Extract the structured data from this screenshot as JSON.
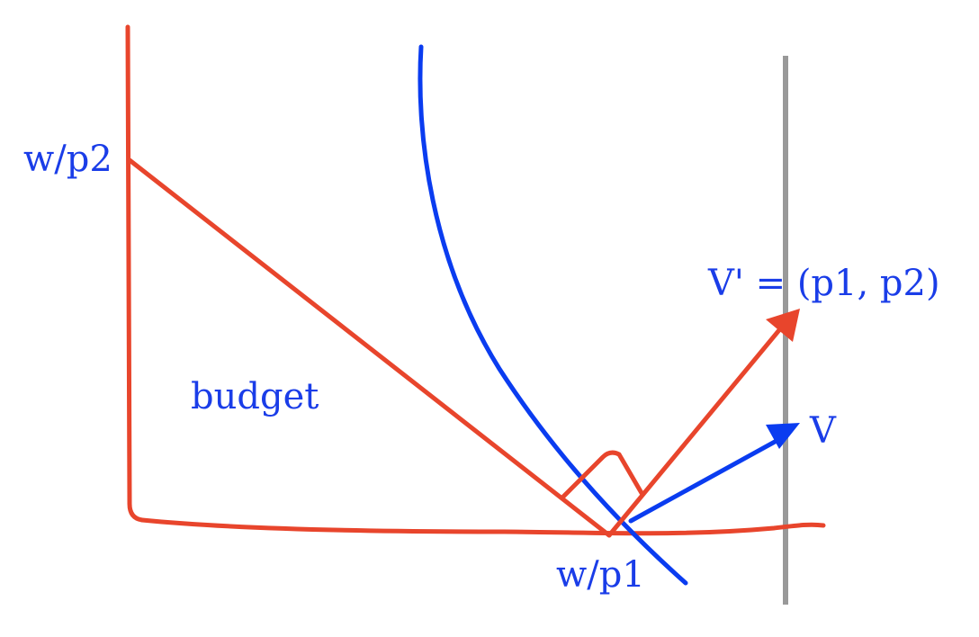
{
  "colors": {
    "budget_line": "#e8452c",
    "indifference_curve": "#0a3cf0",
    "label_text": "#1a3de8",
    "vertical_guide": "#999999"
  },
  "labels": {
    "y_intercept": "w/p2",
    "x_intercept": "w/p1",
    "region": "budget",
    "price_vector": "V' = (p1, p2)",
    "gradient_vector": "V"
  }
}
